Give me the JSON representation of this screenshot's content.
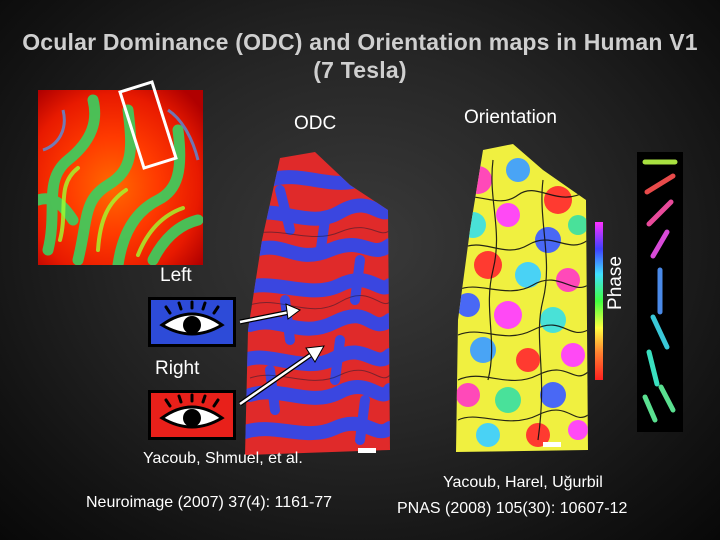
{
  "slide": {
    "title_line1": "Ocular Dominance (ODC) and Orientation maps in Human V1",
    "title_line2": "(7 Tesla)"
  },
  "panels": {
    "odc_label": "ODC",
    "orientation_label": "Orientation",
    "phase_label": "Phase",
    "left_label": "Left",
    "right_label": "Right"
  },
  "citations": {
    "left_line1": "Yacoub, Shmuel, et al.",
    "left_line2": "Neuroimage (2007) 37(4): 1161-77",
    "right_line1": "Yacoub, Harel, Uğurbil",
    "right_line2": "PNAS (2008) 105(30): 10607-12"
  },
  "colors": {
    "left_eye_bg": "#2d4bd8",
    "right_eye_bg": "#e8201a",
    "odc_left": "#3a46e0",
    "odc_right": "#e02a2a"
  },
  "orientation_key": [
    {
      "color": "#a8e040"
    },
    {
      "color": "#e84a4a"
    },
    {
      "color": "#e84a9a"
    },
    {
      "color": "#d84ad8"
    },
    {
      "color": "#4a8ae8"
    },
    {
      "color": "#3ac8d8"
    },
    {
      "color": "#3ae0c0"
    },
    {
      "color": "#5ae090"
    }
  ]
}
